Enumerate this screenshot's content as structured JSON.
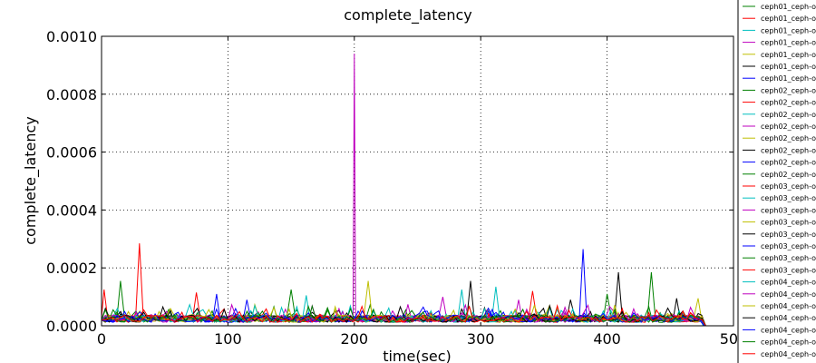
{
  "chart_data": {
    "type": "line",
    "title": "complete_latency",
    "xlabel": "time(sec)",
    "ylabel": "complete_latency",
    "xlim": [
      0,
      500
    ],
    "ylim": [
      0,
      0.001
    ],
    "x_ticks": [
      0,
      100,
      200,
      300,
      400,
      500
    ],
    "x_tick_labels": [
      "0",
      "100",
      "200",
      "300",
      "400",
      "500"
    ],
    "y_ticks": [
      0,
      0.0002,
      0.0004,
      0.0006,
      0.0008,
      0.001
    ],
    "y_tick_labels": [
      "0.0000",
      "0.0002",
      "0.0004",
      "0.0006",
      "0.0008",
      "0.0010"
    ],
    "grid": true,
    "legend_position": "right-outside",
    "series": [
      {
        "name": "ceph01_ceph-o",
        "color": "#008000",
        "x": [
          0,
          15,
          50,
          100,
          150,
          200,
          250,
          300,
          350,
          400,
          435,
          450,
          478
        ],
        "y": [
          3e-05,
          0.000155,
          3e-05,
          3e-05,
          0.000125,
          3e-05,
          3e-05,
          3e-05,
          3e-05,
          0.00011,
          0.000185,
          3e-05,
          0
        ]
      },
      {
        "name": "ceph01_ceph-o",
        "color": "#ff0000",
        "x": [
          0,
          2,
          30,
          75,
          150,
          250,
          341,
          400,
          477
        ],
        "y": [
          3e-05,
          0.000125,
          0.000285,
          0.000115,
          3e-05,
          3e-05,
          0.00012,
          3e-05,
          0
        ]
      },
      {
        "name": "ceph01_ceph-o",
        "color": "#00bfbf",
        "x": [
          0,
          50,
          162,
          200,
          285,
          300,
          312,
          400,
          476
        ],
        "y": [
          2e-05,
          2e-05,
          0.000105,
          2e-05,
          0.000125,
          2e-05,
          0.000135,
          2e-05,
          0
        ]
      },
      {
        "name": "ceph01_ceph-o",
        "color": "#bf00bf",
        "x": [
          0,
          100,
          199,
          200,
          201,
          270,
          330,
          420,
          478
        ],
        "y": [
          3e-05,
          3e-05,
          3e-05,
          0.00094,
          3e-05,
          0.0001,
          9e-05,
          3e-05,
          0
        ]
      },
      {
        "name": "ceph01_ceph-o",
        "color": "#bfbf00",
        "x": [
          0,
          100,
          200,
          211,
          300,
          400,
          472,
          478
        ],
        "y": [
          2e-05,
          2e-05,
          2e-05,
          0.000155,
          2e-05,
          2e-05,
          9.5e-05,
          0
        ]
      },
      {
        "name": "ceph01_ceph-o",
        "color": "#000000",
        "x": [
          0,
          100,
          200,
          292,
          371,
          409,
          455,
          477
        ],
        "y": [
          2e-05,
          3e-05,
          2e-05,
          0.000155,
          9e-05,
          0.000185,
          9.5e-05,
          0
        ]
      },
      {
        "name": "ceph01_ceph-o",
        "color": "#0000ff",
        "x": [
          0,
          91,
          115,
          200,
          300,
          381,
          450,
          477
        ],
        "y": [
          3e-05,
          0.00011,
          9e-05,
          3e-05,
          3e-05,
          0.000265,
          3e-05,
          0
        ]
      },
      {
        "name": "ceph02_ceph-o",
        "color": "#008000",
        "x": [
          0,
          100,
          200,
          300,
          400,
          478
        ],
        "y": [
          2e-05,
          2e-05,
          2e-05,
          2e-05,
          2e-05,
          0
        ]
      },
      {
        "name": "ceph02_ceph-o",
        "color": "#ff0000",
        "x": [
          0,
          100,
          200,
          300,
          400,
          478
        ],
        "y": [
          2e-05,
          2e-05,
          2e-05,
          2e-05,
          2e-05,
          0
        ]
      },
      {
        "name": "ceph02_ceph-o",
        "color": "#00bfbf",
        "x": [
          0,
          100,
          200,
          300,
          400,
          478
        ],
        "y": [
          2e-05,
          2e-05,
          2e-05,
          2e-05,
          2e-05,
          0
        ]
      },
      {
        "name": "ceph02_ceph-o",
        "color": "#bf00bf",
        "x": [
          0,
          100,
          200,
          300,
          400,
          478
        ],
        "y": [
          2e-05,
          2e-05,
          2e-05,
          2e-05,
          2e-05,
          0
        ]
      },
      {
        "name": "ceph02_ceph-o",
        "color": "#bfbf00",
        "x": [
          0,
          100,
          200,
          300,
          400,
          478
        ],
        "y": [
          2e-05,
          2e-05,
          2e-05,
          2e-05,
          2e-05,
          0
        ]
      },
      {
        "name": "ceph02_ceph-o",
        "color": "#000000",
        "x": [
          0,
          100,
          200,
          300,
          400,
          478
        ],
        "y": [
          2e-05,
          2e-05,
          2e-05,
          2e-05,
          2e-05,
          0
        ]
      },
      {
        "name": "ceph02_ceph-o",
        "color": "#0000ff",
        "x": [
          0,
          100,
          200,
          300,
          400,
          478
        ],
        "y": [
          2e-05,
          2e-05,
          2e-05,
          2e-05,
          2e-05,
          0
        ]
      },
      {
        "name": "ceph02_ceph-o",
        "color": "#008000",
        "x": [
          0,
          100,
          200,
          300,
          400,
          478
        ],
        "y": [
          2e-05,
          2e-05,
          2e-05,
          2e-05,
          2e-05,
          0
        ]
      },
      {
        "name": "ceph03_ceph-o",
        "color": "#ff0000",
        "x": [
          0,
          100,
          200,
          300,
          400,
          478
        ],
        "y": [
          2e-05,
          2e-05,
          2e-05,
          2e-05,
          2e-05,
          0
        ]
      },
      {
        "name": "ceph03_ceph-o",
        "color": "#00bfbf",
        "x": [
          0,
          100,
          200,
          300,
          400,
          478
        ],
        "y": [
          2e-05,
          2e-05,
          2e-05,
          2e-05,
          2e-05,
          0
        ]
      },
      {
        "name": "ceph03_ceph-o",
        "color": "#bf00bf",
        "x": [
          0,
          100,
          200,
          300,
          400,
          478
        ],
        "y": [
          2e-05,
          2e-05,
          2e-05,
          2e-05,
          2e-05,
          0
        ]
      },
      {
        "name": "ceph03_ceph-o",
        "color": "#bfbf00",
        "x": [
          0,
          100,
          200,
          300,
          400,
          478
        ],
        "y": [
          2e-05,
          2e-05,
          2e-05,
          2e-05,
          2e-05,
          0
        ]
      },
      {
        "name": "ceph03_ceph-o",
        "color": "#000000",
        "x": [
          0,
          100,
          200,
          300,
          400,
          478
        ],
        "y": [
          2e-05,
          2e-05,
          2e-05,
          2e-05,
          2e-05,
          0
        ]
      },
      {
        "name": "ceph03_ceph-o",
        "color": "#0000ff",
        "x": [
          0,
          100,
          200,
          300,
          400,
          478
        ],
        "y": [
          2e-05,
          2e-05,
          2e-05,
          2e-05,
          2e-05,
          0
        ]
      },
      {
        "name": "ceph03_ceph-o",
        "color": "#008000",
        "x": [
          0,
          100,
          200,
          300,
          400,
          478
        ],
        "y": [
          2e-05,
          2e-05,
          2e-05,
          2e-05,
          2e-05,
          0
        ]
      },
      {
        "name": "ceph03_ceph-o",
        "color": "#ff0000",
        "x": [
          0,
          100,
          200,
          300,
          400,
          478
        ],
        "y": [
          2e-05,
          2e-05,
          2e-05,
          2e-05,
          2e-05,
          0
        ]
      },
      {
        "name": "ceph04_ceph-o",
        "color": "#00bfbf",
        "x": [
          0,
          100,
          200,
          300,
          400,
          478
        ],
        "y": [
          2e-05,
          2e-05,
          2e-05,
          2e-05,
          2e-05,
          0
        ]
      },
      {
        "name": "ceph04_ceph-o",
        "color": "#bf00bf",
        "x": [
          0,
          100,
          200,
          300,
          400,
          478
        ],
        "y": [
          2e-05,
          2e-05,
          2e-05,
          2e-05,
          2e-05,
          0
        ]
      },
      {
        "name": "ceph04_ceph-o",
        "color": "#bfbf00",
        "x": [
          0,
          100,
          200,
          300,
          400,
          478
        ],
        "y": [
          2e-05,
          2e-05,
          2e-05,
          2e-05,
          2e-05,
          0
        ]
      },
      {
        "name": "ceph04_ceph-o",
        "color": "#000000",
        "x": [
          0,
          100,
          200,
          300,
          400,
          478
        ],
        "y": [
          2e-05,
          2e-05,
          2e-05,
          2e-05,
          2e-05,
          0
        ]
      },
      {
        "name": "ceph04_ceph-o",
        "color": "#0000ff",
        "x": [
          0,
          100,
          200,
          300,
          400,
          478
        ],
        "y": [
          2e-05,
          2e-05,
          2e-05,
          2e-05,
          2e-05,
          0
        ]
      },
      {
        "name": "ceph04_ceph-o",
        "color": "#008000",
        "x": [
          0,
          100,
          200,
          300,
          400,
          478
        ],
        "y": [
          2e-05,
          2e-05,
          2e-05,
          2e-05,
          2e-05,
          0
        ]
      },
      {
        "name": "ceph04_ceph-o",
        "color": "#ff0000",
        "x": [
          0,
          100,
          200,
          300,
          400,
          478
        ],
        "y": [
          2e-05,
          2e-05,
          2e-05,
          2e-05,
          2e-05,
          0
        ]
      }
    ]
  }
}
